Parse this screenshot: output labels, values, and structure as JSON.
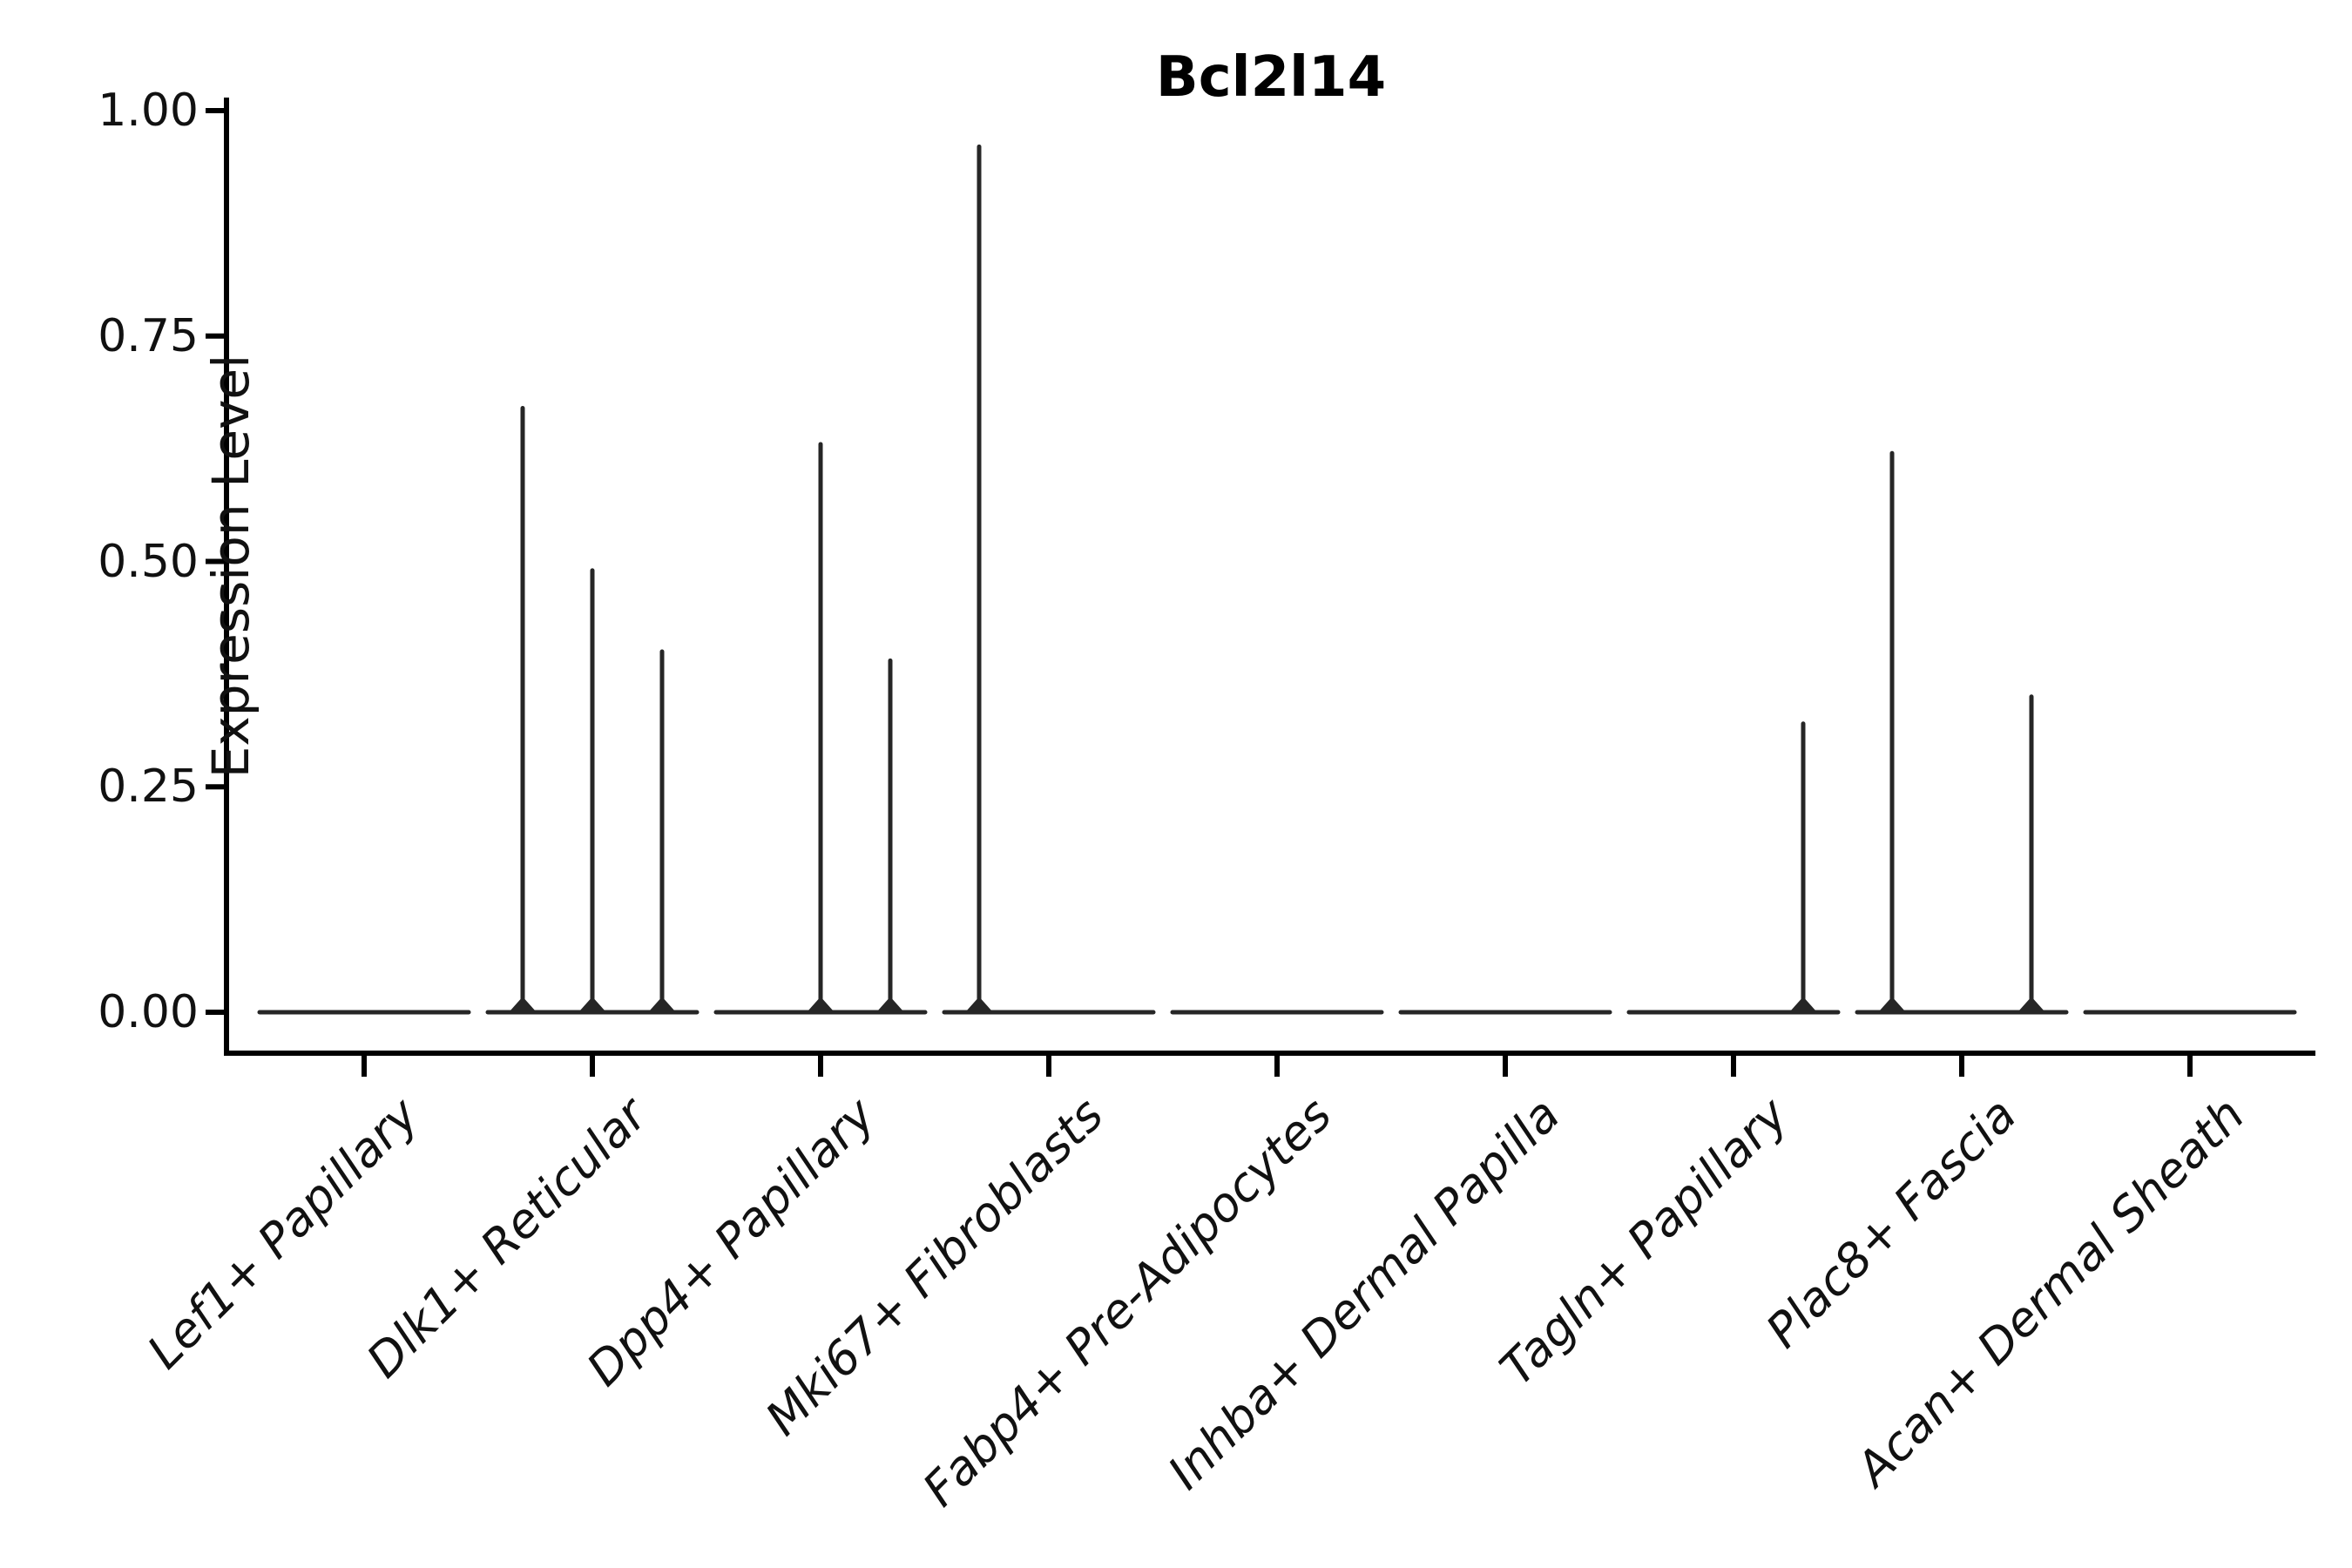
{
  "chart_data": {
    "type": "violin",
    "title": "Bcl2l14",
    "ylabel": "Expression Level",
    "ylim": [
      0,
      1
    ],
    "grid": false,
    "legend": "none",
    "yticks": [
      {
        "label": "1.00",
        "value": 1.0
      },
      {
        "label": "0.75",
        "value": 0.75
      },
      {
        "label": "0.50",
        "value": 0.5
      },
      {
        "label": "0.25",
        "value": 0.25
      },
      {
        "label": "0.00",
        "value": 0.0
      }
    ],
    "categories": [
      "Lef1+ Papillary",
      "Dlk1+ Reticular",
      "Dpp4+ Papillary",
      "Mki67+ Fibroblasts",
      "Fabp4+ Pre-Adipocytes",
      "Inhba+ Dermal Papilla",
      "Tagln+ Papillary",
      "Plac8+ Fascia",
      "Acan+ Dermal Sheath"
    ],
    "series": [
      {
        "category": "Lef1+ Papillary",
        "baseline": 0,
        "spikes": []
      },
      {
        "category": "Dlk1+ Reticular",
        "baseline": 0,
        "spikes": [
          {
            "slot": -1,
            "max": 0.67
          },
          {
            "slot": 0,
            "max": 0.49
          },
          {
            "slot": 1,
            "max": 0.4
          }
        ]
      },
      {
        "category": "Dpp4+ Papillary",
        "baseline": 0,
        "spikes": [
          {
            "slot": 0,
            "max": 0.63
          },
          {
            "slot": 1,
            "max": 0.39
          }
        ]
      },
      {
        "category": "Mki67+ Fibroblasts",
        "baseline": 0,
        "spikes": [
          {
            "slot": -1,
            "max": 0.96
          }
        ]
      },
      {
        "category": "Fabp4+ Pre-Adipocytes",
        "baseline": 0,
        "spikes": []
      },
      {
        "category": "Inhba+ Dermal Papilla",
        "baseline": 0,
        "spikes": []
      },
      {
        "category": "Tagln+ Papillary",
        "baseline": 0,
        "spikes": [
          {
            "slot": 1,
            "max": 0.32
          }
        ]
      },
      {
        "category": "Plac8+ Fascia",
        "baseline": 0,
        "spikes": [
          {
            "slot": -1,
            "max": 0.62
          },
          {
            "slot": 1,
            "max": 0.35
          }
        ]
      },
      {
        "category": "Acan+ Dermal Sheath",
        "baseline": 0,
        "spikes": []
      }
    ],
    "colors": {
      "violin_stroke": "#262626",
      "axis": "#000000",
      "text": "#111111",
      "background": "#ffffff"
    }
  }
}
